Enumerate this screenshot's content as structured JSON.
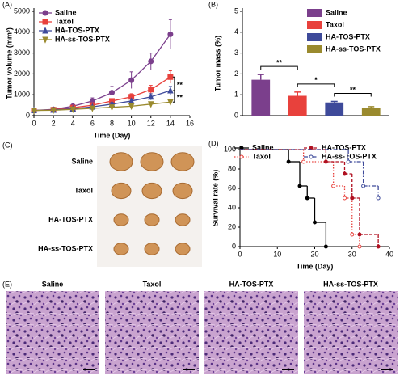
{
  "chart_data": [
    {
      "type": "line",
      "label": "(A)",
      "xlabel": "Time (Day)",
      "ylabel": "Tumor volume (mm³)",
      "xlim": [
        0,
        16
      ],
      "xticks": [
        0,
        2,
        4,
        6,
        8,
        10,
        12,
        14,
        16
      ],
      "ylim": [
        0,
        5000
      ],
      "yticks": [
        0,
        1000,
        2000,
        3000,
        4000,
        5000
      ],
      "legend": "upper left",
      "series": [
        {
          "name": "Saline",
          "color": "#7b3f8c",
          "marker": "circle",
          "x": [
            0,
            2,
            4,
            6,
            8,
            10,
            12,
            14
          ],
          "values": [
            250,
            300,
            450,
            700,
            1100,
            1700,
            2600,
            3900
          ],
          "errors": [
            30,
            50,
            80,
            150,
            300,
            400,
            400,
            700
          ]
        },
        {
          "name": "Taxol",
          "color": "#e8413c",
          "marker": "square",
          "x": [
            0,
            2,
            4,
            6,
            8,
            10,
            12,
            14
          ],
          "values": [
            250,
            280,
            380,
            500,
            700,
            900,
            1250,
            1850
          ],
          "errors": [
            30,
            40,
            60,
            80,
            100,
            150,
            200,
            300
          ]
        },
        {
          "name": "HA-TOS-PTX",
          "color": "#3e4a9a",
          "marker": "triangle-up",
          "x": [
            0,
            2,
            4,
            6,
            8,
            10,
            12,
            14
          ],
          "values": [
            250,
            270,
            330,
            420,
            550,
            700,
            900,
            1200
          ],
          "errors": [
            20,
            30,
            40,
            50,
            80,
            100,
            150,
            200
          ]
        },
        {
          "name": "HA-ss-TOS-PTX",
          "color": "#9a8a2e",
          "marker": "triangle-down",
          "x": [
            0,
            2,
            4,
            6,
            8,
            10,
            12,
            14
          ],
          "values": [
            250,
            260,
            300,
            350,
            400,
            450,
            550,
            650
          ],
          "errors": [
            20,
            25,
            30,
            40,
            50,
            60,
            80,
            100
          ]
        }
      ],
      "annotations": [
        "**",
        "**"
      ]
    },
    {
      "type": "bar",
      "label": "(B)",
      "ylabel": "Tumor mass (%)",
      "categories": [
        "Saline",
        "Taxol",
        "HA-TOS-PTX",
        "HA-ss-TOS-PTX"
      ],
      "values": [
        1.72,
        0.95,
        0.63,
        0.35
      ],
      "errors": [
        0.25,
        0.18,
        0.05,
        0.08
      ],
      "colors": [
        "#7b3f8c",
        "#e8413c",
        "#3e4a9a",
        "#9a8a2e"
      ],
      "ylim": [
        0,
        5
      ],
      "yticks": [
        0,
        1,
        2,
        3,
        4,
        5
      ],
      "legend": "upper right",
      "annotations": [
        "**",
        "*",
        "**"
      ]
    },
    {
      "type": "step",
      "label": "(D)",
      "xlabel": "Time (Day)",
      "ylabel": "Survival rate (%)",
      "xlim": [
        0,
        40
      ],
      "xticks": [
        0,
        10,
        20,
        30,
        40
      ],
      "ylim": [
        0,
        100
      ],
      "yticks": [
        0,
        20,
        40,
        60,
        80,
        100
      ],
      "legend": "top",
      "series": [
        {
          "name": "Saline",
          "color": "#000000",
          "dash": "none",
          "x": [
            0,
            13,
            16,
            18,
            20,
            23
          ],
          "values": [
            100,
            87.5,
            62.5,
            50,
            25,
            0
          ]
        },
        {
          "name": "Taxol",
          "color": "#e8413c",
          "dash": "1.5,2",
          "x": [
            0,
            17,
            25,
            28,
            30,
            32
          ],
          "values": [
            100,
            87.5,
            62.5,
            50,
            12.5,
            0
          ]
        },
        {
          "name": "HA-TOS-PTX",
          "color": "#b01020",
          "dash": "4,2",
          "x": [
            0,
            23,
            28,
            30,
            32,
            37
          ],
          "values": [
            100,
            87.5,
            75,
            50,
            12.5,
            0
          ]
        },
        {
          "name": "HA-ss-TOS-PTX",
          "color": "#3e4a9a",
          "dash": "5,2,1.5,2",
          "x": [
            0,
            29,
            33,
            37
          ],
          "values": [
            100,
            87.5,
            62.5,
            50
          ]
        }
      ]
    }
  ],
  "photo_panels": {
    "tumors": {
      "label": "(C)",
      "rows": [
        "Saline",
        "Taxol",
        "HA-TOS-PTX",
        "HA-ss-TOS-PTX"
      ]
    },
    "histology": {
      "label": "(E)",
      "titles": [
        "Saline",
        "Taxol",
        "HA-TOS-PTX",
        "HA-ss-TOS-PTX"
      ]
    }
  }
}
